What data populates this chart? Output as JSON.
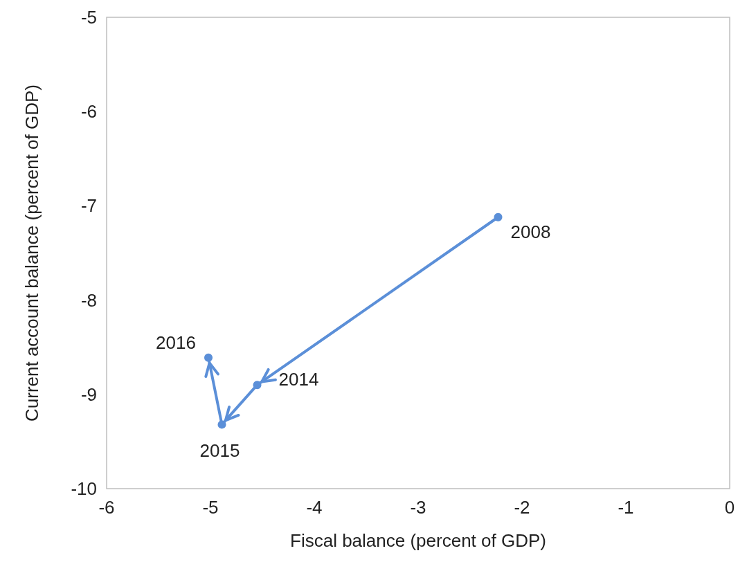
{
  "chart_data": {
    "type": "line",
    "xlabel": "Fiscal balance (percent of GDP)",
    "ylabel": "Current account balance (percent of GDP)",
    "x": [
      -2.23,
      -4.55,
      -4.89,
      -5.02
    ],
    "series": [
      {
        "color": "#5b8fd8",
        "values": [
          -7.12,
          -8.9,
          -9.32,
          -8.61
        ]
      }
    ],
    "xlim": [
      -6,
      0
    ],
    "xticks": [
      -6,
      -5,
      -4,
      -3,
      -2,
      -1,
      0
    ],
    "ylim": [
      -10,
      -5
    ],
    "yticks": [
      -10,
      -9,
      -8,
      -7,
      -6,
      -5
    ],
    "marker": "circle",
    "line_style": "solid",
    "grid": false,
    "annotations": [
      {
        "text": "2008",
        "x": -2.23,
        "y": -7.12
      },
      {
        "text": "2014",
        "x": -4.55,
        "y": -8.9
      },
      {
        "text": "2015",
        "x": -4.89,
        "y": -9.32
      },
      {
        "text": "2016",
        "x": -5.02,
        "y": -8.61
      }
    ]
  }
}
